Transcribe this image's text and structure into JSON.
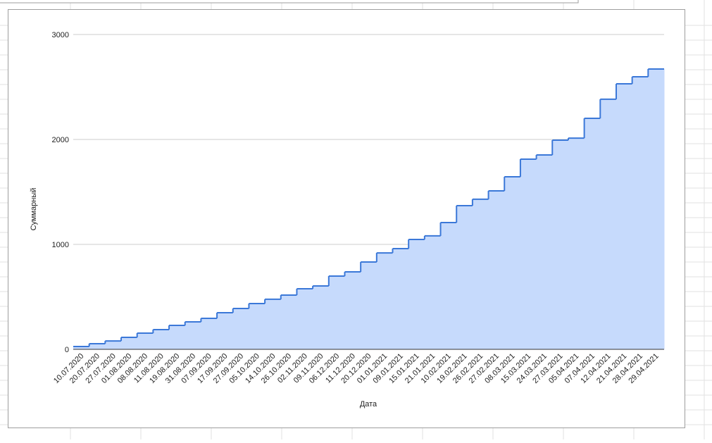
{
  "chart_data": {
    "type": "stepped-area",
    "x_label": "Дата",
    "y_label": "Суммарный",
    "categories": [
      "10.07.2020",
      "20.07.2020",
      "27.07.2020",
      "01.08.2020",
      "08.08.2020",
      "11.08.2020",
      "19.08.2020",
      "31.08.2020",
      "07.09.2020",
      "17.09.2020",
      "27.09.2020",
      "05.10.2020",
      "14.10.2020",
      "26.10.2020",
      "02.11.2020",
      "09.11.2020",
      "06.12.2020",
      "11.12.2020",
      "20.12.2020",
      "01.01.2021",
      "09.01.2021",
      "15.01.2021",
      "21.01.2021",
      "10.02.2021",
      "19.02.2021",
      "26.02.2021",
      "27.02.2021",
      "08.03.2021",
      "15.03.2021",
      "24.03.2021",
      "27.03.2021",
      "05.04.2021",
      "07.04.2021",
      "12.04.2021",
      "21.04.2021",
      "28.04.2021",
      "29.04.2021"
    ],
    "values": [
      27,
      54,
      80,
      114,
      154,
      188,
      228,
      262,
      295,
      349,
      389,
      436,
      477,
      517,
      577,
      604,
      698,
      738,
      832,
      919,
      960,
      1047,
      1081,
      1208,
      1369,
      1430,
      1510,
      1644,
      1812,
      1852,
      1993,
      2013,
      2201,
      2383,
      2530,
      2597,
      2671
    ],
    "color": "#3b78d8",
    "fill": "#c6dafc",
    "ylim": [
      0,
      3000
    ],
    "yticks": [
      0,
      1000,
      2000,
      3000
    ],
    "grid": true
  }
}
